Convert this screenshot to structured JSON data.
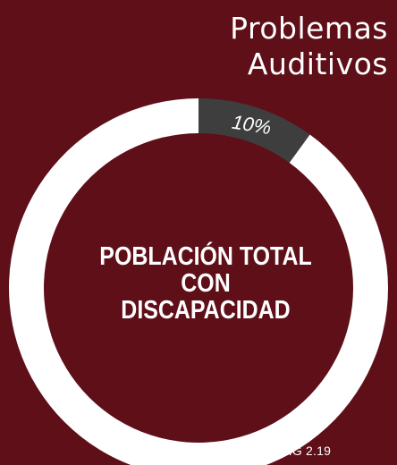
{
  "chart_data": {
    "type": "pie",
    "title": "Problemas\nAuditivos",
    "center_label": "POBLACIÓN TOTAL\nCON\nDISCAPACIDAD",
    "slices": [
      {
        "label": "10%",
        "value": 10,
        "color": "#3e3e3e"
      },
      {
        "label": "",
        "value": 90,
        "color": "#ffffff"
      }
    ],
    "start_angle_deg": 0
  },
  "figure_label": "FIG 2.19"
}
